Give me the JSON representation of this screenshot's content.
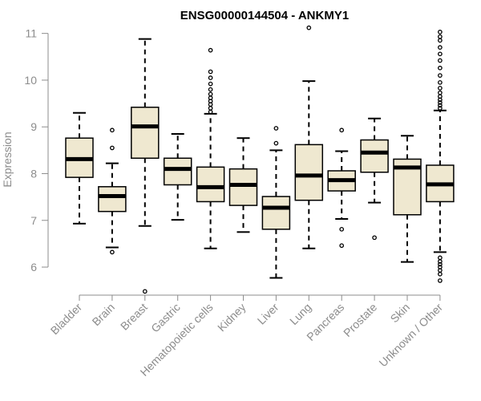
{
  "chart_data": {
    "type": "boxplot",
    "title": "ENSG00000144504 - ANKMY1",
    "xlabel": "",
    "ylabel": "Expression",
    "ylim": [
      5.4,
      11.2
    ],
    "yticks": [
      6,
      7,
      8,
      9,
      10,
      11
    ],
    "colors": {
      "box_fill": "#efe8d0",
      "stroke": "#000000",
      "axis": "#8c8c8c"
    },
    "categories": [
      "Bladder",
      "Brain",
      "Breast",
      "Gastric",
      "Hematopoietic cells",
      "Kidney",
      "Liver",
      "Lung",
      "Pancreas",
      "Prostate",
      "Skin",
      "Unknown / Other"
    ],
    "boxes": [
      {
        "category": "Bladder",
        "whisker_low": 6.93,
        "q1": 7.92,
        "median": 8.31,
        "q3": 8.76,
        "whisker_high": 9.3,
        "outliers": []
      },
      {
        "category": "Brain",
        "whisker_low": 6.42,
        "q1": 7.19,
        "median": 7.52,
        "q3": 7.72,
        "whisker_high": 8.22,
        "outliers": [
          6.32,
          8.55,
          8.93
        ]
      },
      {
        "category": "Breast",
        "whisker_low": 6.88,
        "q1": 8.33,
        "median": 9.01,
        "q3": 9.42,
        "whisker_high": 10.88,
        "outliers": [
          5.48
        ]
      },
      {
        "category": "Gastric",
        "whisker_low": 7.01,
        "q1": 7.76,
        "median": 8.1,
        "q3": 8.33,
        "whisker_high": 8.85,
        "outliers": []
      },
      {
        "category": "Hematopoietic cells",
        "whisker_low": 6.4,
        "q1": 7.4,
        "median": 7.71,
        "q3": 8.14,
        "whisker_high": 9.28,
        "outliers": [
          9.32,
          9.4,
          9.48,
          9.55,
          9.62,
          9.7,
          9.8,
          9.92,
          10.05,
          10.18,
          10.64
        ]
      },
      {
        "category": "Kidney",
        "whisker_low": 6.75,
        "q1": 7.32,
        "median": 7.76,
        "q3": 8.1,
        "whisker_high": 8.76,
        "outliers": []
      },
      {
        "category": "Liver",
        "whisker_low": 5.77,
        "q1": 6.81,
        "median": 7.27,
        "q3": 7.51,
        "whisker_high": 8.5,
        "outliers": [
          8.65,
          8.97
        ]
      },
      {
        "category": "Lung",
        "whisker_low": 6.4,
        "q1": 7.43,
        "median": 7.96,
        "q3": 8.62,
        "whisker_high": 9.98,
        "outliers": [
          11.12
        ]
      },
      {
        "category": "Pancreas",
        "whisker_low": 7.03,
        "q1": 7.63,
        "median": 7.86,
        "q3": 8.06,
        "whisker_high": 8.48,
        "outliers": [
          6.46,
          6.81,
          8.93
        ]
      },
      {
        "category": "Prostate",
        "whisker_low": 7.38,
        "q1": 8.03,
        "median": 8.45,
        "q3": 8.72,
        "whisker_high": 9.18,
        "outliers": [
          6.63
        ]
      },
      {
        "category": "Skin",
        "whisker_low": 6.11,
        "q1": 7.12,
        "median": 8.13,
        "q3": 8.31,
        "whisker_high": 8.81,
        "outliers": []
      },
      {
        "category": "Unknown / Other",
        "whisker_low": 6.32,
        "q1": 7.4,
        "median": 7.77,
        "q3": 8.18,
        "whisker_high": 9.35,
        "outliers": [
          5.71,
          5.85,
          5.93,
          6.0,
          6.06,
          6.12,
          6.2,
          9.4,
          9.46,
          9.52,
          9.58,
          9.65,
          9.73,
          9.83,
          9.95,
          10.1,
          10.26,
          10.42,
          10.56,
          10.7,
          10.85,
          10.93,
          11.03
        ]
      }
    ]
  }
}
